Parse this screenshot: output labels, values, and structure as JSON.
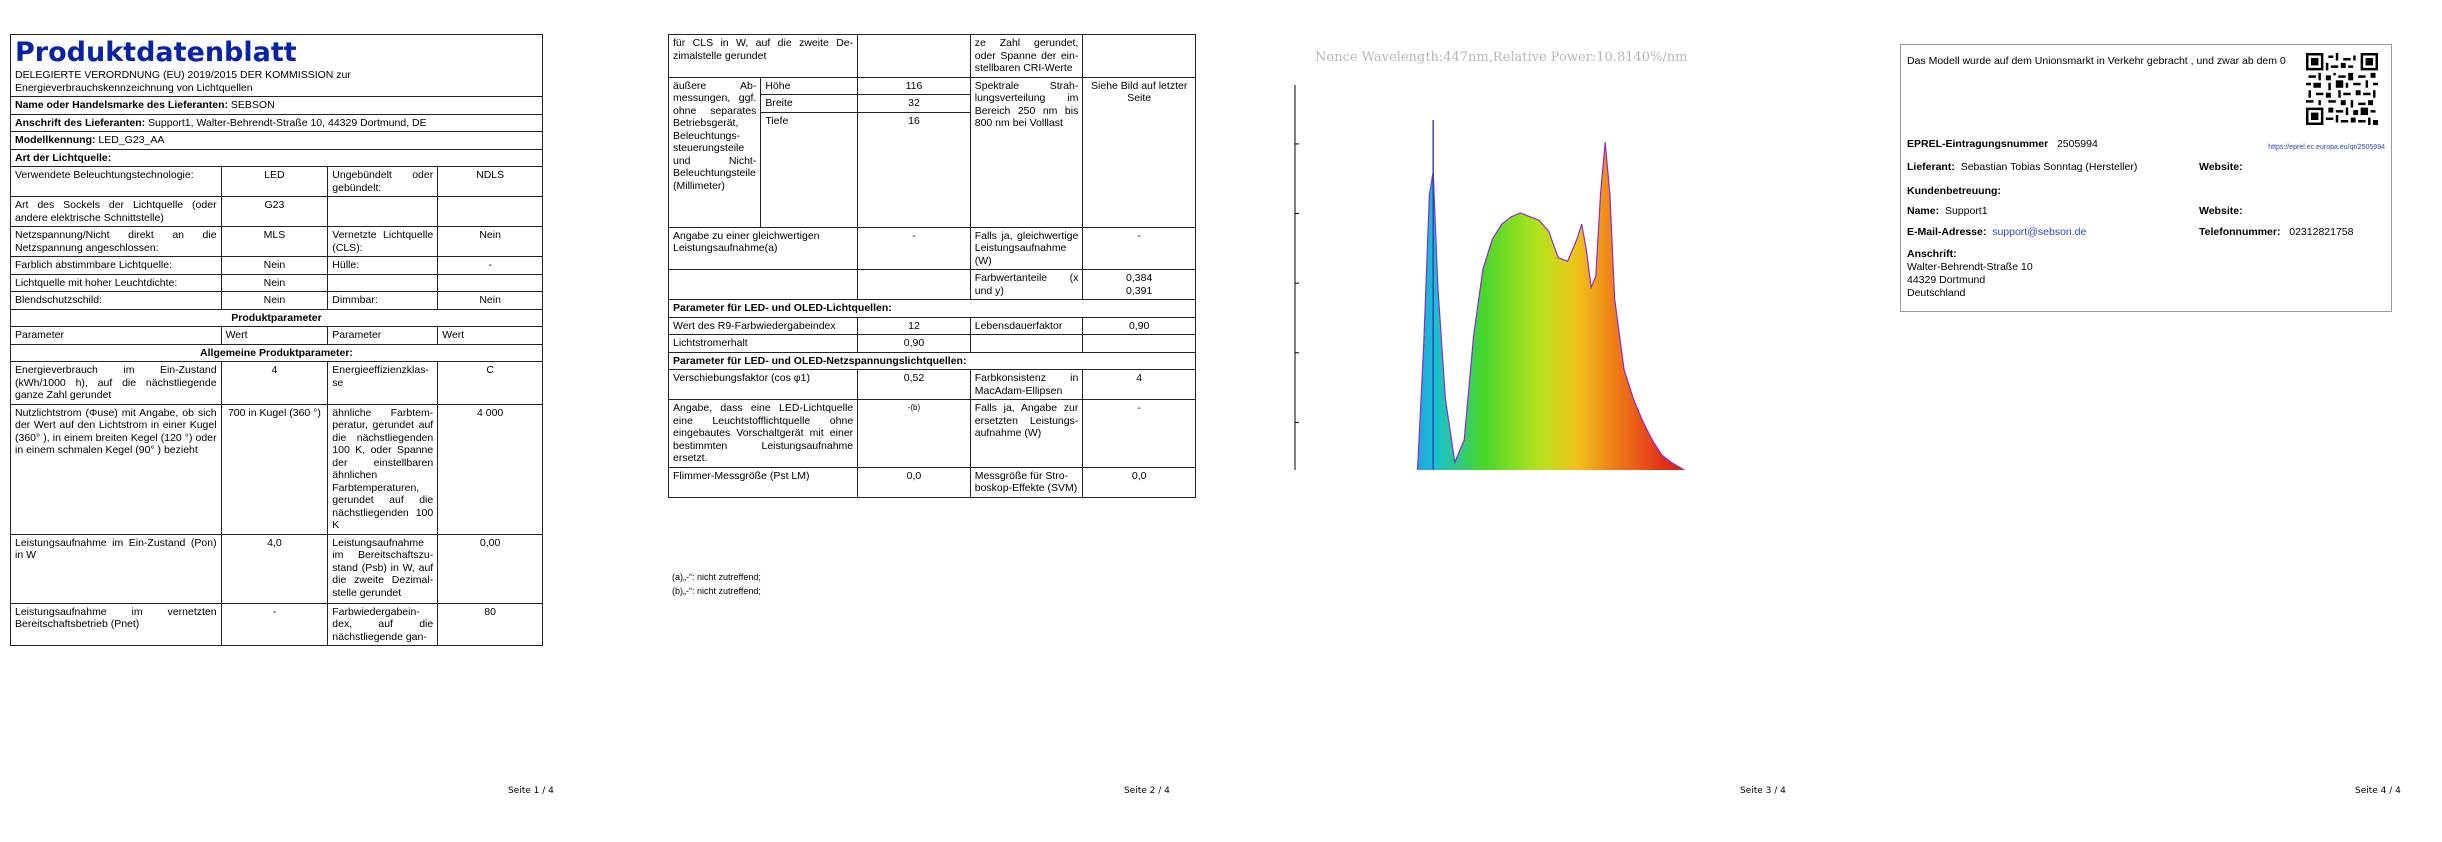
{
  "pages": {
    "p1": {
      "title": "Produktdatenblatt",
      "regulation": "DELEGIERTE VERORDNUNG (EU) 2019/2015 DER KOMMISSION zur Energieverbrauchskennzeichnung von Lichtquellen",
      "supplier_label": "Name oder Handelsmarke des Lieferanten:",
      "supplier_value": "SEBSON",
      "address_label": "Anschrift des Lieferanten:",
      "address_value": "Support1, Walter-Behrendt-Straße 10, 44329 Dortmund, DE",
      "model_label": "Modellkennung:",
      "model_value": "LED_G23_AA",
      "light_type": "Art der Lichtquelle:",
      "r_tech_l": "Verwendete Beleuchtungstech­nologie:",
      "r_tech_v": "LED",
      "r_unbundled_l": "Ungebündelt oder gebündelt:",
      "r_unbundled_v": "NDLS",
      "r_socket_l": "Art des Sockels der Lichtquelle (oder andere elektrische Schnittstelle)",
      "r_socket_v": "G23",
      "r_mains_l": "Netzspannung/Nicht direkt an die Netzspannung angeschlos­sen:",
      "r_mains_v": "MLS",
      "r_connected_l": "Vernetzte Lichtquel­le (CLS):",
      "r_connected_v": "Nein",
      "r_color_l": "Farblich abstimmbare Licht­quelle:",
      "r_color_v": "Nein",
      "r_envelope_l": "Hülle:",
      "r_envelope_v": "-",
      "r_highlum_l": "Lichtquelle mit hoher Leucht­dichte:",
      "r_highlum_v": "Nein",
      "r_glare_l": "Blendschutzschild:",
      "r_glare_v": "Nein",
      "r_dim_l": "Dimmbar:",
      "r_dim_v": "Nein",
      "product_params": "Produktparameter",
      "col_param": "Parameter",
      "col_value": "Wert",
      "general_params": "Allgemeine Produktparameter:",
      "r_energy_l": "Energieverbrauch im Ein-Zu­stand (kWh/1000 h), auf die nächstliegende ganze Zahl ge­rundet",
      "r_energy_v": "4",
      "r_class_l": "Energieeffizienzklas­se",
      "r_class_v": "C",
      "r_flux_l": "Nutzlichtstrom (Φuse) mit An­gabe, ob sich der Wert auf den Lichtstrom in einer Kugel (360° ), in einem breiten Kegel (120 °) oder in einem schmalen Kegel (90° ) bezieht",
      "r_flux_v": "700 in Ku­gel (360 °)",
      "r_cct_l": "ähnliche Farbtem­peratur, gerundet auf die nächst­liegenden 100 K, oder Spanne der einstellbaren ähnli­chen Farbtempera­turen, gerundet auf die nächstliegenden 100 K",
      "r_cct_v": "4 000",
      "r_pon_l": "Leistungsaufnahme im Ein-Zu­stand (Pon) in W",
      "r_pon_v": "4,0",
      "r_psb_l": "Leistungsaufnahme im Bereitschaftszu­stand (Psb) in W, auf die zweite Dezimal­stelle gerundet",
      "r_psb_v": "0,00",
      "r_pnet_l": "Leistungsaufnahme im vernetz­ten Bereitschaftsbetrieb (Pnet)",
      "r_pnet_v": "-",
      "r_cri_l": "Farbwiedergabein­dex, auf die nächstliegende gan-",
      "r_cri_v": "80",
      "footer": "Seite 1 / 4"
    },
    "p2": {
      "r_cls_cont_l": "für CLS in W, auf die zweite De­zimalstelle gerundet",
      "r_cri_cont_l": "ze Zahl gerundet, oder Spanne der ein­stellbaren CRI-Wer­te",
      "r_dims_l": "äußere Ab­messungen, ggf. ohne se­parates Be­triebsgerät, Beleuchtungs­steuerungstei­le und Nicht-Beleuchtungs­teile (Millime­ter)",
      "dim_h_l": "Höhe",
      "dim_h_v": "116",
      "dim_w_l": "Breite",
      "dim_w_v": "32",
      "dim_d_l": "Tiefe",
      "dim_d_v": "16",
      "r_spd_l": "Spektrale Strah­lungsverteilung im Bereich 250 nm bis 800 nm bei Volllast",
      "r_spd_v": "Siehe Bild auf letzter Seite",
      "r_equiv_l": "Angabe zu einer gleichwertigen Leistungsaufnahme(a)",
      "r_equiv_v": "-",
      "r_equiv2_l": "Falls ja, gleichwerti­ge Leistungsaufnah­me (W)",
      "r_equiv2_v": "-",
      "r_chroma_l": "Farbwertanteile (x und y)",
      "r_chroma_v1": "0,384",
      "r_chroma_v2": "0,391",
      "led_params": "Parameter für LED- und OLED-Lichtquellen:",
      "r_r9_l": "Wert des R9-Farbwiedergabein­dex",
      "r_r9_v": "12",
      "r_life_l": "Lebensdauerfaktor",
      "r_life_v": "0,90",
      "r_maint_l": "Lichtstromerhalt",
      "r_maint_v": "0,90",
      "mains_params": "Parameter für LED- und OLED-Netzspannungslichtquellen:",
      "r_pf_l": "Verschiebungsfaktor (cos φ1)",
      "r_pf_v": "0,52",
      "r_macadam_l": "Farbkonsistenz in MacAdam-Ellipsen",
      "r_macadam_v": "4",
      "r_replace_l": "Angabe, dass eine LED-Licht­quelle eine Leuchtstofflicht­quelle ohne eingebautes Vor­schaltgerät mit einer bestimm­ten Leistungsaufnahme ersetzt.",
      "r_replace_v": "-(b)",
      "r_replace2_l": "Falls ja, Angabe zur ersetzten Leistungs­aufnahme (W)",
      "r_replace2_v": "-",
      "r_flicker_l": "Flimmer-Messgröße (Pst LM)",
      "r_flicker_v": "0,0",
      "r_strobo_l": "Messgröße für Stro­boskop-Effekte (SVM)",
      "r_strobo_v": "0,0",
      "fn_a": "(a)„-“: nicht zutreffend;",
      "fn_b": "(b)„-“: nicht zutreffend;",
      "footer": "Seite 2 / 4"
    },
    "p3": {
      "chart_caption": "Nonce Wavelength:447nm,Relative Power:10.8140%/nm",
      "footer": "Seite 3 / 4"
    },
    "p4": {
      "market_text": "Das Modell wurde auf dem Unionsmarkt in Verkehr gebracht , und zwar ab dem 0",
      "eprel_label": "EPREL-Eintragungsnummer",
      "eprel_value": "2505994",
      "eprel_url": "https://eprel.ec.europa.eu/qr/2505994",
      "lieferant_label": "Lieferant:",
      "lieferant_value": "Sebastian Tobias Sonntag (Hersteller)",
      "website_label": "Website:",
      "kb_label": "Kundenbetreuung:",
      "name_label": "Name:",
      "name_value": "Support1",
      "website2_label": "Website:",
      "email_label": "E-Mail-Adresse:",
      "email_value": "support@sebson.de",
      "tel_label": "Telefonnummer:",
      "tel_value": "02312821758",
      "addr_label": "Anschrift:",
      "addr_1": "Walter-Behrendt-Straße 10",
      "addr_2": "44329 Dortmund",
      "addr_3": "Deutschland",
      "footer": "Seite 4 / 4"
    }
  },
  "chart_data": {
    "type": "area",
    "title": "Nonce Wavelength:447nm,Relative Power:10.8140%/nm",
    "xlabel": "",
    "ylabel": "",
    "xlim": [
      300,
      800
    ],
    "ylim": [
      0,
      100
    ],
    "x_ticks": [
      300,
      400,
      500,
      600,
      700,
      800
    ],
    "x": [
      300,
      420,
      430,
      437,
      443,
      447,
      452,
      460,
      470,
      480,
      490,
      500,
      510,
      520,
      530,
      540,
      550,
      560,
      570,
      580,
      590,
      600,
      605,
      610,
      615,
      620,
      625,
      630,
      635,
      640,
      650,
      660,
      670,
      680,
      690,
      700,
      720,
      740,
      760,
      780,
      800
    ],
    "values": [
      0,
      0,
      4,
      40,
      80,
      86,
      55,
      25,
      8,
      14,
      42,
      60,
      68,
      72,
      74,
      75,
      74,
      73,
      70,
      63,
      62,
      68,
      72,
      65,
      55,
      58,
      80,
      94,
      80,
      52,
      33,
      25,
      19,
      14,
      10,
      8,
      5,
      3,
      2,
      1,
      0
    ],
    "grid": false
  }
}
